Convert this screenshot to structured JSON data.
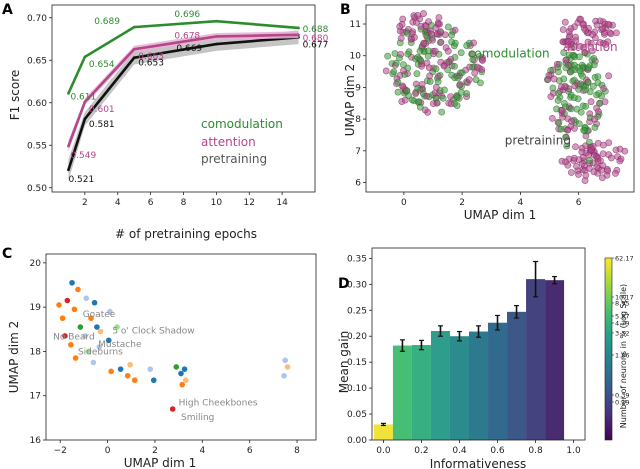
{
  "panel_letters": [
    "A",
    "B",
    "C",
    "D"
  ],
  "colors": {
    "comodulation": "#2e8b2e",
    "attention": "#b5468a",
    "pretraining": "#111111",
    "pretraining_band": "#bbbbbb"
  },
  "chart_data": [
    {
      "id": "A",
      "type": "line",
      "xlabel": "# of pretraining epochs",
      "ylabel": "F1 score",
      "xlim": [
        0,
        16
      ],
      "ylim": [
        0.495,
        0.715
      ],
      "xticks": [
        2,
        4,
        6,
        8,
        10,
        12,
        14
      ],
      "yticks": [
        0.5,
        0.55,
        0.6,
        0.65,
        0.7
      ],
      "ytick_labels": [
        "0.50",
        "0.55",
        "0.60",
        "0.65",
        "0.70"
      ],
      "x": [
        1,
        2,
        5,
        10,
        15
      ],
      "series": [
        {
          "name": "pretraining",
          "values": [
            0.521,
            0.581,
            0.653,
            0.669,
            0.677
          ],
          "labels": [
            "0.521",
            "0.581",
            "0.653",
            "0.669",
            "0.677"
          ],
          "band": 0.008
        },
        {
          "name": "attention",
          "values": [
            0.549,
            0.601,
            0.663,
            0.678,
            0.68
          ],
          "labels": [
            "0.549",
            "0.601",
            "0.663",
            "0.678",
            "0.680"
          ],
          "band": 0.004
        },
        {
          "name": "comodulation",
          "values": [
            0.611,
            0.654,
            0.689,
            0.696,
            0.688
          ],
          "labels": [
            "0.611",
            "0.654",
            "0.689",
            "0.696",
            "0.688"
          ],
          "band": 0.0
        }
      ],
      "legend": [
        "comodulation",
        "attention",
        "pretraining"
      ],
      "legend_position": "bottom-right"
    },
    {
      "id": "B",
      "type": "scatter",
      "xlabel": "UMAP dim 1",
      "ylabel": "UMAP dim 2",
      "xlim": [
        -1.3,
        7.9
      ],
      "ylim": [
        5.7,
        11.6
      ],
      "xticks": [
        0,
        2,
        4,
        6
      ],
      "yticks": [
        6,
        7,
        8,
        9,
        10,
        11
      ],
      "labels": [
        {
          "text": "comodulation",
          "series": "comodulation",
          "x": 3.6,
          "y": 9.95
        },
        {
          "text": "attention",
          "series": "attention",
          "x": 6.4,
          "y": 10.15
        },
        {
          "text": "pretraining",
          "series": "pretraining",
          "x": 4.6,
          "y": 7.2
        }
      ],
      "clusters": [
        {
          "cx": 1.1,
          "cy": 9.6,
          "rx": 1.7,
          "ry": 1.35,
          "n": 190,
          "mix": 0.5
        },
        {
          "cx": 5.9,
          "cy": 8.8,
          "rx": 1.1,
          "ry": 1.45,
          "n": 150,
          "mix": 0.55
        },
        {
          "cx": 6.3,
          "cy": 10.7,
          "rx": 1.0,
          "ry": 0.5,
          "n": 55,
          "mix": 0.0
        },
        {
          "cx": 6.5,
          "cy": 6.7,
          "rx": 1.0,
          "ry": 0.6,
          "n": 70,
          "mix": 0.05
        },
        {
          "cx": 0.6,
          "cy": 10.9,
          "rx": 0.9,
          "ry": 0.35,
          "n": 35,
          "mix": 0.1
        }
      ]
    },
    {
      "id": "C",
      "type": "scatter",
      "xlabel": "UMAP dim 1",
      "ylabel": "UMAP dim 2",
      "xlim": [
        -2.6,
        8.8
      ],
      "ylim": [
        16.0,
        20.2
      ],
      "xticks": [
        -2,
        0,
        2,
        4,
        6,
        8
      ],
      "yticks": [
        16,
        17,
        18,
        19,
        20
      ],
      "points": [
        {
          "x": -1.5,
          "y": 19.55,
          "c": "#1f77b4"
        },
        {
          "x": -1.25,
          "y": 19.4,
          "c": "#ff7f0e"
        },
        {
          "x": -2.05,
          "y": 19.05,
          "c": "#ff7f0e"
        },
        {
          "x": -1.7,
          "y": 19.15,
          "c": "#d62728"
        },
        {
          "x": -1.4,
          "y": 18.95,
          "c": "#ff7f0e"
        },
        {
          "x": -0.9,
          "y": 19.2,
          "c": "#aec7e8"
        },
        {
          "x": -0.55,
          "y": 19.1,
          "c": "#1f77b4"
        },
        {
          "x": -1.9,
          "y": 18.75,
          "c": "#ff7f0e"
        },
        {
          "x": -1.15,
          "y": 18.55,
          "c": "#2ca02c"
        },
        {
          "x": -0.7,
          "y": 18.75,
          "c": "#ff7f0e"
        },
        {
          "x": -0.45,
          "y": 18.55,
          "c": "#1f77b4"
        },
        {
          "x": -1.8,
          "y": 18.35,
          "c": "#d62728"
        },
        {
          "x": -1.55,
          "y": 18.15,
          "c": "#ff7f0e"
        },
        {
          "x": -0.95,
          "y": 18.35,
          "c": "#aec7e8"
        },
        {
          "x": -0.8,
          "y": 18.0,
          "c": "#98df8a"
        },
        {
          "x": -0.35,
          "y": 18.1,
          "c": "#aec7e8"
        },
        {
          "x": 0.05,
          "y": 18.25,
          "c": "#1f77b4"
        },
        {
          "x": 0.4,
          "y": 18.55,
          "c": "#98df8a"
        },
        {
          "x": -1.35,
          "y": 17.85,
          "c": "#ff7f0e"
        },
        {
          "x": -0.6,
          "y": 17.75,
          "c": "#aec7e8"
        },
        {
          "x": 0.15,
          "y": 17.55,
          "c": "#ff7f0e"
        },
        {
          "x": 0.55,
          "y": 17.6,
          "c": "#1f77b4"
        },
        {
          "x": 0.85,
          "y": 17.45,
          "c": "#ff7f0e"
        },
        {
          "x": 1.15,
          "y": 17.35,
          "c": "#ff7f0e"
        },
        {
          "x": 1.8,
          "y": 17.6,
          "c": "#aec7e8"
        },
        {
          "x": 1.95,
          "y": 17.35,
          "c": "#1f77b4"
        },
        {
          "x": 0.95,
          "y": 17.7,
          "c": "#ffbb78"
        },
        {
          "x": 2.9,
          "y": 17.65,
          "c": "#2ca02c"
        },
        {
          "x": 3.1,
          "y": 17.5,
          "c": "#1f77b4"
        },
        {
          "x": 3.25,
          "y": 17.6,
          "c": "#1f77b4"
        },
        {
          "x": 3.3,
          "y": 17.35,
          "c": "#ffbb78"
        },
        {
          "x": 3.15,
          "y": 17.25,
          "c": "#ff7f0e"
        },
        {
          "x": 2.75,
          "y": 16.7,
          "c": "#d62728"
        },
        {
          "x": 7.5,
          "y": 17.8,
          "c": "#aec7e8"
        },
        {
          "x": 7.6,
          "y": 17.65,
          "c": "#ffbb78"
        },
        {
          "x": 7.45,
          "y": 17.45,
          "c": "#aec7e8"
        },
        {
          "x": -0.3,
          "y": 18.45,
          "c": "#ffbb78"
        },
        {
          "x": 0.1,
          "y": 18.9,
          "c": "#aec7e8"
        }
      ],
      "annotations": [
        {
          "text": "Goatee",
          "x": -1.05,
          "y": 18.78
        },
        {
          "text": "5 o' Clock Shadow",
          "x": 0.2,
          "y": 18.41
        },
        {
          "text": "No Beard",
          "x": -2.3,
          "y": 18.27
        },
        {
          "text": "Mustache",
          "x": -0.4,
          "y": 18.1
        },
        {
          "text": "Sideburns",
          "x": -1.25,
          "y": 17.93
        },
        {
          "text": "High Cheekbones",
          "x": 3.0,
          "y": 16.78
        },
        {
          "text": "Smiling",
          "x": 3.1,
          "y": 16.45
        }
      ]
    },
    {
      "id": "D",
      "type": "bar",
      "xlabel": "Informativeness",
      "ylabel": "Mean gain",
      "xlim": [
        -0.06,
        1.06
      ],
      "ylim": [
        0,
        0.37
      ],
      "xticks": [
        0.0,
        0.2,
        0.4,
        0.6,
        0.8,
        1.0
      ],
      "xtick_labels": [
        "0.0",
        "0.2",
        "0.4",
        "0.6",
        "0.8",
        "1.0"
      ],
      "yticks": [
        0.0,
        0.05,
        0.1,
        0.15,
        0.2,
        0.25,
        0.3,
        0.35
      ],
      "ytick_labels": [
        "0.00",
        "0.05",
        "0.10",
        "0.15",
        "0.20",
        "0.25",
        "0.30",
        "0.35"
      ],
      "bar_width": 0.1,
      "bins": [
        0.0,
        0.1,
        0.2,
        0.3,
        0.4,
        0.5,
        0.6,
        0.7,
        0.8,
        0.9
      ],
      "values": [
        0.03,
        0.182,
        0.183,
        0.21,
        0.2,
        0.209,
        0.226,
        0.247,
        0.31,
        0.308
      ],
      "errors": [
        0.002,
        0.011,
        0.009,
        0.01,
        0.009,
        0.011,
        0.014,
        0.012,
        0.034,
        0.007
      ],
      "bar_colors": [
        "#f2e33a",
        "#46bf74",
        "#38ae83",
        "#2f9d8b",
        "#2b8b8d",
        "#2d7a8e",
        "#326a8d",
        "#3b5889",
        "#454280",
        "#482b70"
      ],
      "colorbar": {
        "label": "Number of neurons in % (Log Scale)",
        "ticks": [
          "62.17",
          "10.17",
          "8.95",
          "5.87",
          "4.79",
          "3.52",
          "1.86",
          "0.39",
          "0.29"
        ],
        "tick_values": [
          62.17,
          10.17,
          8.95,
          5.87,
          4.79,
          3.52,
          1.86,
          0.39,
          0.29
        ]
      }
    }
  ]
}
